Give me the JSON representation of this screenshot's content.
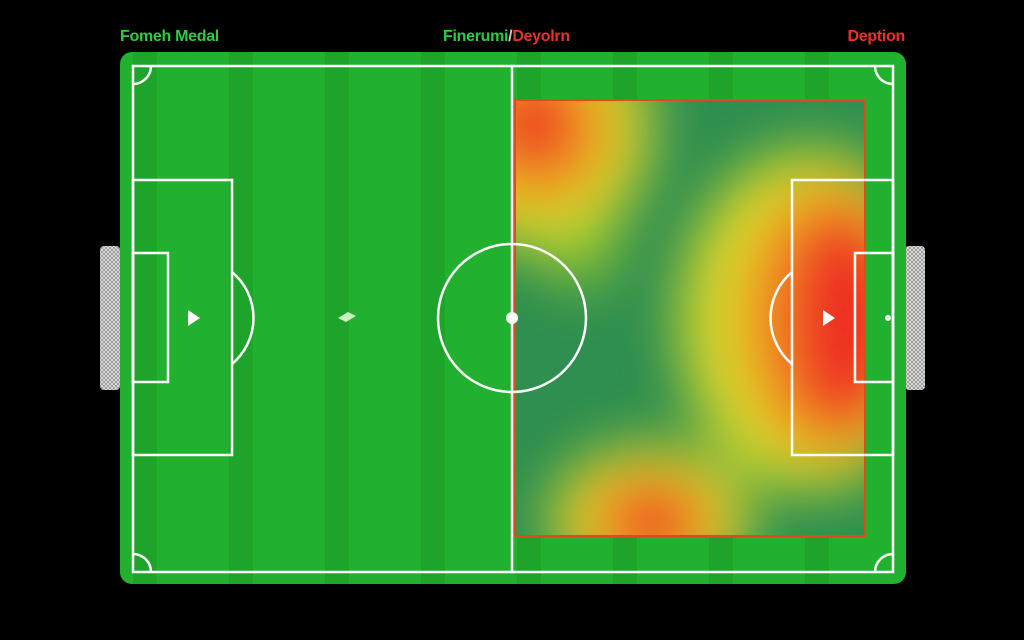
{
  "labels": {
    "left": "Fomeh Medal",
    "center_green": "Finerumi",
    "center_sep": "/",
    "center_red": "Deyolrn",
    "right": "Deption"
  },
  "colors": {
    "pitch": "#22b12f",
    "stripe_dark": "#1ea42a",
    "lines": "#ffffff",
    "heat_low": "#2e8f50",
    "heat_mid": "#e5e52a",
    "heat_high": "#ee2a20",
    "label_green": "#2ecc40",
    "label_red": "#e8322a"
  }
}
